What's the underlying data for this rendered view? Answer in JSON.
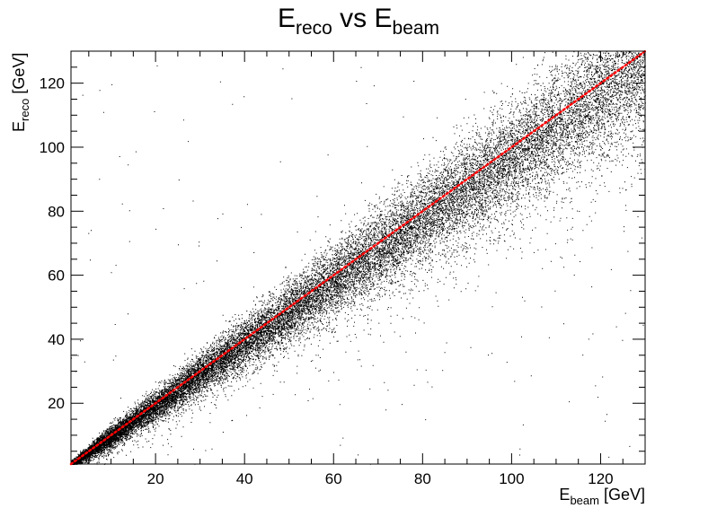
{
  "chart_data": {
    "type": "scatter",
    "title": {
      "base": "E",
      "sub1": "reco",
      "middle": " vs E",
      "sub2": "beam"
    },
    "xlabel": {
      "base": "E",
      "sub": "beam",
      "unit": " [GeV]"
    },
    "ylabel": {
      "base": "E",
      "sub": "reco",
      "unit": " [GeV]"
    },
    "xlim": [
      1,
      130
    ],
    "ylim": [
      1,
      130
    ],
    "x_ticks": [
      20,
      40,
      60,
      80,
      100,
      120
    ],
    "y_ticks": [
      20,
      40,
      60,
      80,
      100,
      120
    ],
    "x_tick_labels": [
      "20",
      "40",
      "60",
      "80",
      "100",
      "120"
    ],
    "y_tick_labels": [
      "20",
      "40",
      "60",
      "80",
      "100",
      "120"
    ],
    "grid": false,
    "legend": "none",
    "series": [
      {
        "kind": "scatter-density",
        "color": "#000000",
        "relation": "E_reco ≈ E_beam",
        "approx_points": [
          [
            5,
            5
          ],
          [
            10,
            10
          ],
          [
            20,
            20
          ],
          [
            30,
            30
          ],
          [
            40,
            40
          ],
          [
            50,
            50
          ],
          [
            60,
            60
          ],
          [
            70,
            70
          ],
          [
            80,
            80
          ],
          [
            90,
            90
          ],
          [
            100,
            100
          ],
          [
            110,
            110
          ],
          [
            120,
            120
          ],
          [
            130,
            130
          ]
        ],
        "approx_spread": [
          [
            10,
            2
          ],
          [
            20,
            3
          ],
          [
            40,
            5
          ],
          [
            60,
            7
          ],
          [
            80,
            9
          ],
          [
            100,
            11
          ],
          [
            120,
            13
          ],
          [
            130,
            14
          ]
        ]
      },
      {
        "kind": "reference-line",
        "color": "#ff0000",
        "style": "dotted",
        "points": [
          [
            1,
            1
          ],
          [
            130,
            130
          ]
        ]
      }
    ]
  }
}
